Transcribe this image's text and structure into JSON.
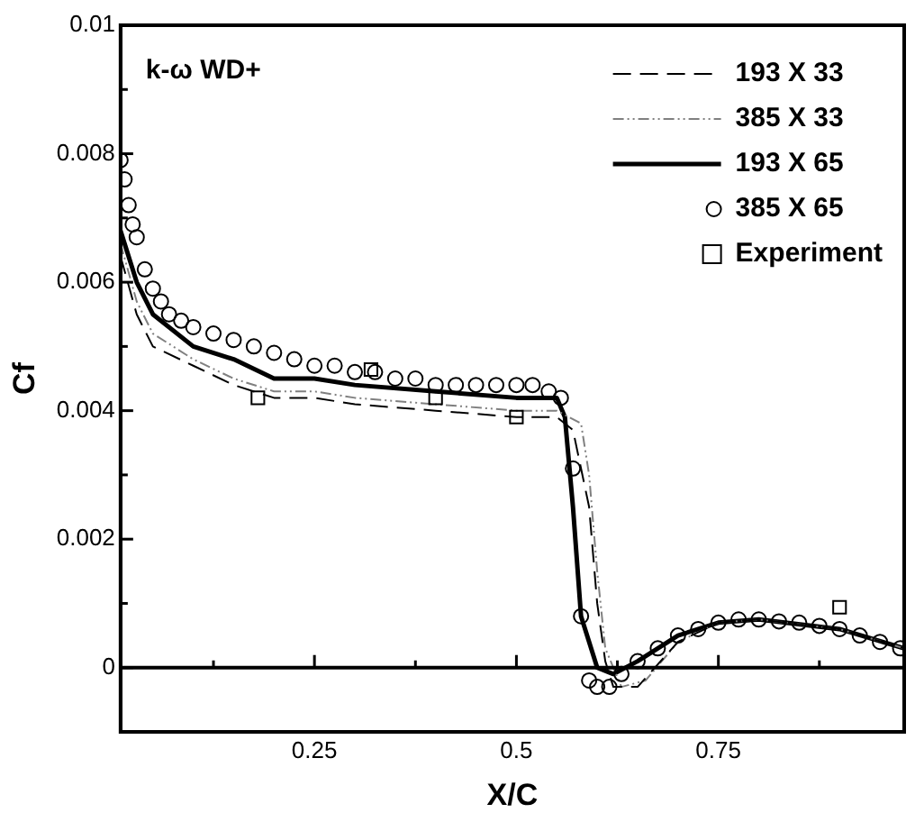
{
  "chart_data": {
    "type": "line",
    "xlabel": "X/C",
    "ylabel": "Cf",
    "annotations": [
      "k-ω WD+"
    ],
    "xlim": [
      0.01,
      0.98
    ],
    "ylim": [
      -0.001,
      0.01
    ],
    "xticks": [
      {
        "value": 0.125,
        "label": null
      },
      0.25,
      {
        "value": 0.375,
        "label": null
      },
      0.5,
      {
        "value": 0.625,
        "label": null
      },
      0.75,
      {
        "value": 0.875,
        "label": null
      }
    ],
    "yticks": [
      0,
      {
        "value": 0.001,
        "label": null
      },
      0.002,
      {
        "value": 0.003,
        "label": null
      },
      0.004,
      {
        "value": 0.005,
        "label": null
      },
      0.006,
      {
        "value": 0.007,
        "label": null
      },
      0.008,
      {
        "value": 0.009,
        "label": null
      },
      0.01
    ],
    "grid": false,
    "legend": "top right",
    "ref_lines": [
      {
        "axis": "y",
        "value": 0,
        "color": "#000000"
      }
    ],
    "series": [
      {
        "name": "193 X 33",
        "color": "#000000",
        "line_style": "dashed",
        "x": [
          0.01,
          0.03,
          0.05,
          0.1,
          0.15,
          0.2,
          0.25,
          0.3,
          0.4,
          0.5,
          0.55,
          0.57,
          0.59,
          0.6,
          0.61,
          0.62,
          0.65,
          0.7,
          0.75,
          0.8,
          0.9,
          0.98
        ],
        "values": [
          0.0064,
          0.0055,
          0.005,
          0.0047,
          0.0044,
          0.0042,
          0.0042,
          0.0041,
          0.004,
          0.0039,
          0.0039,
          0.0037,
          0.0025,
          0.001,
          0.0001,
          -0.0003,
          -0.0003,
          0.0004,
          0.0007,
          0.00075,
          0.0006,
          0.0003
        ]
      },
      {
        "name": "385 X 33",
        "color": "#808080",
        "line_style": "dashdot",
        "x": [
          0.01,
          0.03,
          0.05,
          0.1,
          0.15,
          0.2,
          0.25,
          0.3,
          0.4,
          0.5,
          0.55,
          0.58,
          0.59,
          0.6,
          0.61,
          0.63,
          0.66,
          0.7,
          0.75,
          0.8,
          0.9,
          0.98
        ],
        "values": [
          0.0066,
          0.0057,
          0.0052,
          0.0048,
          0.0045,
          0.0043,
          0.0043,
          0.0042,
          0.0041,
          0.004,
          0.004,
          0.0038,
          0.003,
          0.0015,
          0.0003,
          -0.0003,
          -0.0002,
          0.0004,
          0.0007,
          0.00075,
          0.0006,
          0.0003
        ]
      },
      {
        "name": "193 X 65",
        "color": "#000000",
        "line_style": "solid",
        "x": [
          0.01,
          0.03,
          0.05,
          0.1,
          0.15,
          0.2,
          0.25,
          0.3,
          0.4,
          0.5,
          0.55,
          0.56,
          0.57,
          0.58,
          0.6,
          0.62,
          0.65,
          0.7,
          0.75,
          0.8,
          0.9,
          0.98
        ],
        "values": [
          0.0068,
          0.006,
          0.0055,
          0.005,
          0.0048,
          0.0045,
          0.0045,
          0.0044,
          0.0043,
          0.0042,
          0.0042,
          0.0039,
          0.0025,
          0.0008,
          0,
          -0.0001,
          0.0001,
          0.0005,
          0.0007,
          0.00075,
          0.0006,
          0.0003
        ]
      },
      {
        "name": "385 X 65",
        "color": "#000000",
        "type": "scatter",
        "marker": "circle",
        "x": [
          0.01,
          0.015,
          0.02,
          0.025,
          0.03,
          0.04,
          0.05,
          0.06,
          0.07,
          0.085,
          0.1,
          0.125,
          0.15,
          0.175,
          0.2,
          0.225,
          0.25,
          0.275,
          0.3,
          0.325,
          0.35,
          0.375,
          0.4,
          0.425,
          0.45,
          0.475,
          0.5,
          0.52,
          0.54,
          0.555,
          0.57,
          0.58,
          0.59,
          0.6,
          0.615,
          0.63,
          0.65,
          0.675,
          0.7,
          0.725,
          0.75,
          0.775,
          0.8,
          0.825,
          0.85,
          0.875,
          0.9,
          0.925,
          0.95,
          0.975
        ],
        "values": [
          0.0079,
          0.0076,
          0.0072,
          0.0069,
          0.0067,
          0.0062,
          0.0059,
          0.0057,
          0.0055,
          0.0054,
          0.0053,
          0.0052,
          0.0051,
          0.005,
          0.0049,
          0.0048,
          0.0047,
          0.0047,
          0.0046,
          0.0046,
          0.0045,
          0.0045,
          0.0044,
          0.0044,
          0.0044,
          0.0044,
          0.0044,
          0.0044,
          0.0043,
          0.0042,
          0.0031,
          0.0008,
          -0.0002,
          -0.0003,
          -0.0003,
          -0.0001,
          0.0001,
          0.0003,
          0.0005,
          0.0006,
          0.0007,
          0.00075,
          0.00075,
          0.00072,
          0.0007,
          0.00065,
          0.0006,
          0.0005,
          0.0004,
          0.0003
        ]
      },
      {
        "name": "Experiment",
        "color": "#000000",
        "type": "scatter",
        "marker": "square",
        "x": [
          0.18,
          0.32,
          0.4,
          0.5,
          0.9
        ],
        "values": [
          0.0042,
          0.00464,
          0.0042,
          0.0039,
          0.00094
        ]
      }
    ]
  }
}
